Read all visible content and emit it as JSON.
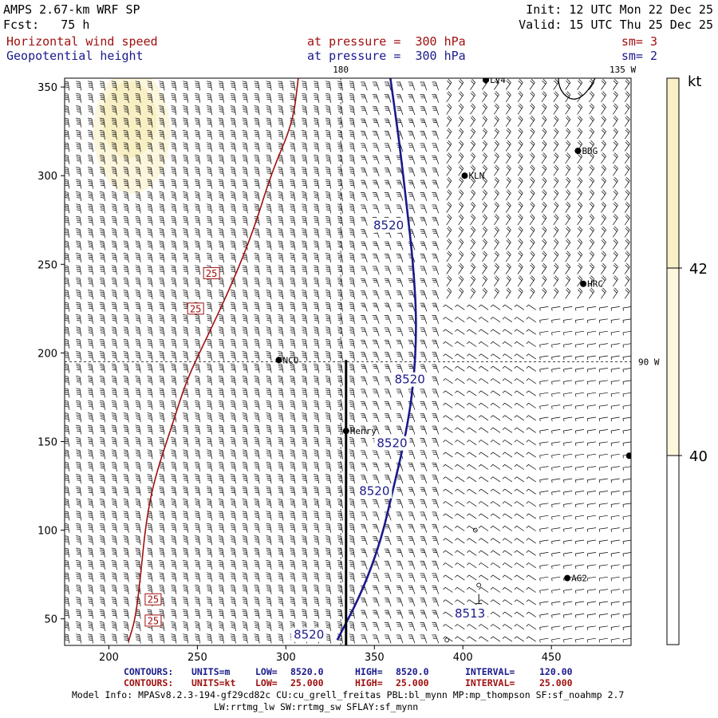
{
  "header": {
    "model": "AMPS 2.67-km WRF SP",
    "fcst": "Fcst:   75 h",
    "init": "Init: 12 UTC Mon 22 Dec 25",
    "valid": "Valid: 15 UTC Thu 25 Dec 25",
    "field1": {
      "name": "Horizontal wind speed",
      "level": "at pressure =  300 hPa",
      "sm": "sm= 3"
    },
    "field2": {
      "name": "Geopotential height",
      "level": "at pressure =  300 hPa",
      "sm": "sm= 2"
    }
  },
  "colors": {
    "wind_contour": "#a01010",
    "height_contour": "#1a1a8c",
    "shade_light": "#fbf6dc",
    "shade_mid": "#f8f0c4",
    "cross_section": "#000000"
  },
  "chart_data": {
    "type": "contour-map",
    "x_axis": {
      "range": [
        175,
        495
      ],
      "ticks": [
        200,
        250,
        300,
        350,
        400,
        450
      ]
    },
    "y_axis": {
      "range": [
        35,
        355
      ],
      "ticks": [
        50,
        100,
        150,
        200,
        250,
        300,
        350
      ]
    },
    "grid_lines": {
      "meridian_180": {
        "label": "180",
        "x": 331
      },
      "parallel_90w": {
        "label": "90 W",
        "y": 195
      },
      "corner_label": "135 W"
    },
    "colorbar": {
      "unit": "kt",
      "labels": [
        "42",
        "40"
      ],
      "levels": [
        40,
        42
      ]
    },
    "height_contours": [
      {
        "label": "8520",
        "points": [
          [
            359,
            355
          ],
          [
            364,
            320
          ],
          [
            368,
            285
          ],
          [
            372,
            250
          ],
          [
            374,
            215
          ],
          [
            372,
            180
          ],
          [
            367,
            150
          ],
          [
            361,
            125
          ],
          [
            354,
            95
          ],
          [
            343,
            65
          ],
          [
            329,
            38
          ]
        ]
      }
    ],
    "height_labels": [
      {
        "text": "8520",
        "x": 358,
        "y": 272
      },
      {
        "text": "8520",
        "x": 370,
        "y": 185
      },
      {
        "text": "8520",
        "x": 360,
        "y": 149
      },
      {
        "text": "8520",
        "x": 350,
        "y": 122
      },
      {
        "text": "8520",
        "x": 313,
        "y": 41
      },
      {
        "text": "8513",
        "x": 404,
        "y": 53
      }
    ],
    "wind_contours": [
      {
        "label": "25",
        "points": [
          [
            307,
            355
          ],
          [
            304,
            330
          ],
          [
            292,
            302
          ],
          [
            282,
            270
          ],
          [
            270,
            240
          ],
          [
            256,
            210
          ],
          [
            244,
            185
          ],
          [
            236,
            160
          ],
          [
            226,
            130
          ],
          [
            221,
            105
          ],
          [
            218,
            75
          ],
          [
            215,
            50
          ],
          [
            211,
            37
          ]
        ]
      }
    ],
    "wind_labels": [
      {
        "text": "25",
        "x": 258,
        "y": 245
      },
      {
        "text": "25",
        "x": 249,
        "y": 225
      },
      {
        "text": "25",
        "x": 225,
        "y": 61
      },
      {
        "text": "25",
        "x": 225,
        "y": 49
      }
    ],
    "stations": [
      {
        "name": "LV4",
        "x": 413,
        "y": 354
      },
      {
        "name": "BDG",
        "x": 465,
        "y": 314
      },
      {
        "name": "KLN",
        "x": 401,
        "y": 300
      },
      {
        "name": "HRC",
        "x": 468,
        "y": 239
      },
      {
        "name": "NCO",
        "x": 296,
        "y": 196
      },
      {
        "name": "Henry",
        "x": 334,
        "y": 156
      },
      {
        "name": "AG2",
        "x": 459,
        "y": 73
      },
      {
        "name": "",
        "x": 494,
        "y": 142
      }
    ],
    "cross_section_line": {
      "x": 334,
      "y_from": 35,
      "y_to": 196
    },
    "shaded_region_kt": ">40"
  },
  "footer": {
    "row1": {
      "label": "CONTOURS:",
      "units": "UNITS=m",
      "low": "LOW=",
      "low_val": "8520.0",
      "high": "HIGH=",
      "high_val": "8520.0",
      "interval": "INTERVAL=",
      "interval_val": "120.00"
    },
    "row2": {
      "label": "CONTOURS:",
      "units": "UNITS=kt",
      "low": "LOW=",
      "low_val": "25.000",
      "high": "HIGH=",
      "high_val": "25.000",
      "interval": "INTERVAL=",
      "interval_val": "25.000"
    },
    "model_info": "Model Info: MPASv8.2.3-194-gf29cd82c CU:cu_grell_freitas PBL:bl_mynn MP:mp_thompson SF:sf_noahmp 2.7",
    "model_info2": "LW:rrtmg_lw SW:rrtmg_sw SFLAY:sf_mynn"
  }
}
